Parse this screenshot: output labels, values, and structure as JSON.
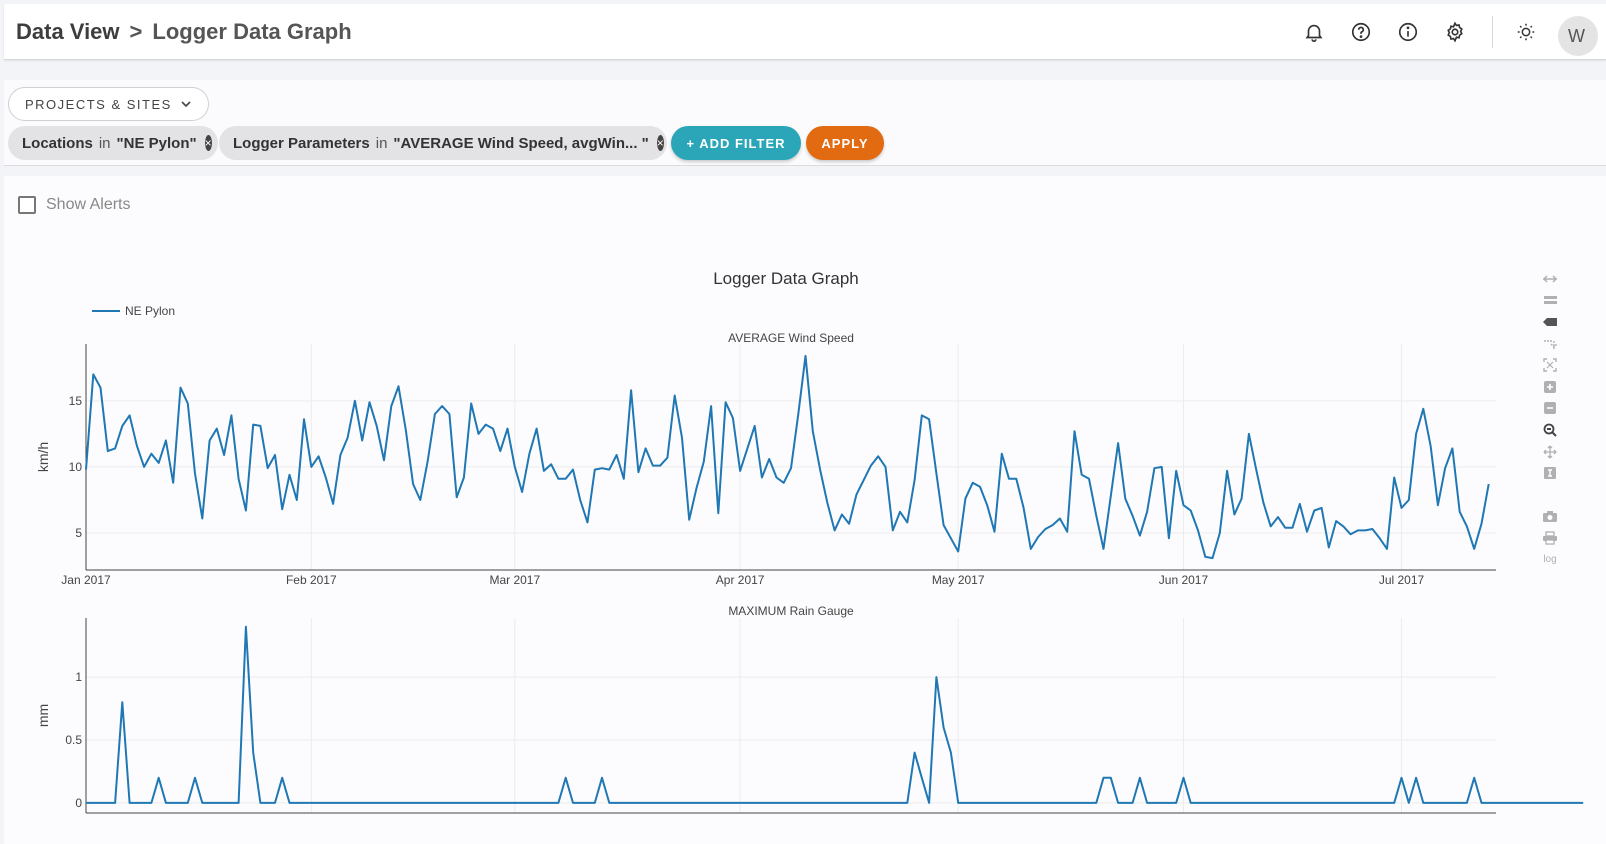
{
  "header": {
    "breadcrumb_root": "Data View",
    "breadcrumb_sep": ">",
    "breadcrumb_current": "Logger Data Graph",
    "icons": [
      "bell-icon",
      "help-icon",
      "info-icon",
      "gear-icon",
      "brightness-icon"
    ],
    "avatar_initial": "W"
  },
  "filters": {
    "projects_button": "PROJECTS & SITES",
    "chips": [
      {
        "field": "Locations",
        "op": "in",
        "value": "\"NE Pylon\""
      },
      {
        "field": "Logger Parameters",
        "op": "in",
        "value": "\"AVERAGE Wind Speed, avgWin... \""
      }
    ],
    "add_filter_label": "+ ADD FILTER",
    "apply_label": "APPLY"
  },
  "alerts": {
    "label": "Show Alerts"
  },
  "modebar": {
    "log_label": "log"
  },
  "chart_data": {
    "type": "line",
    "title": "Logger Data Graph",
    "legend": {
      "placement": "top-left",
      "entries": [
        "NE Pylon"
      ]
    },
    "x_tick_labels": [
      "Jan 2017",
      "Feb 2017",
      "Mar 2017",
      "Apr 2017",
      "May 2017",
      "Jun 2017",
      "Jul 2017"
    ],
    "x_tick_dates": [
      "2017-01-01",
      "2017-02-01",
      "2017-03-01",
      "2017-04-01",
      "2017-05-01",
      "2017-06-01",
      "2017-07-01"
    ],
    "xlim": [
      "2017-01-01",
      "2017-07-14"
    ],
    "grid": true,
    "subplots": [
      {
        "title": "AVERAGE Wind Speed",
        "ylabel": "km/h",
        "ylim": [
          2.2,
          19.3
        ],
        "yticks": [
          5,
          10,
          15
        ],
        "ytick_labels": [
          "5",
          "10",
          "15"
        ],
        "series": [
          {
            "name": "NE Pylon",
            "x_start": "2017-01-01",
            "x_step_days": 1,
            "values": [
              9.8,
              17.0,
              16.0,
              11.2,
              11.4,
              13.1,
              13.9,
              11.6,
              10.0,
              11.0,
              10.3,
              12.0,
              8.8,
              16.0,
              14.8,
              9.5,
              6.1,
              12.0,
              12.9,
              10.9,
              13.9,
              9.1,
              6.7,
              13.2,
              13.1,
              9.9,
              10.9,
              6.8,
              9.4,
              7.5,
              13.6,
              10.0,
              10.8,
              9.2,
              7.2,
              10.9,
              12.2,
              15.0,
              12.0,
              14.9,
              13.1,
              10.5,
              14.6,
              16.1,
              12.8,
              8.7,
              7.5,
              10.4,
              14.0,
              14.6,
              14.0,
              7.7,
              9.2,
              14.8,
              12.5,
              13.2,
              12.9,
              11.2,
              12.9,
              10.0,
              8.1,
              11.0,
              12.9,
              9.7,
              10.2,
              9.1,
              9.1,
              9.8,
              7.5,
              5.8,
              9.8,
              9.9,
              9.8,
              10.9,
              9.1,
              15.8,
              9.6,
              11.4,
              10.1,
              10.1,
              10.7,
              15.4,
              12.2,
              6.0,
              8.4,
              10.4,
              14.6,
              6.5,
              14.9,
              13.7,
              9.7,
              11.4,
              13.1,
              9.2,
              10.6,
              9.2,
              8.8,
              9.9,
              14.0,
              18.4,
              12.7,
              9.8,
              7.3,
              5.2,
              6.4,
              5.7,
              7.9,
              9.0,
              10.1,
              10.8,
              10.0,
              5.2,
              6.6,
              5.8,
              9.0,
              13.9,
              13.6,
              9.5,
              5.6,
              4.6,
              3.6,
              7.6,
              8.8,
              8.5,
              7.1,
              5.1,
              11.0,
              9.1,
              9.1,
              6.9,
              3.8,
              4.7,
              5.3,
              5.6,
              6.1,
              5.1,
              12.7,
              9.4,
              9.1,
              6.3,
              3.8,
              7.8,
              11.8,
              7.6,
              6.3,
              4.8,
              6.6,
              9.9,
              10.0,
              4.6,
              9.7,
              7.1,
              6.7,
              5.2,
              3.2,
              3.1,
              5.0,
              9.7,
              6.4,
              7.6,
              12.5,
              9.8,
              7.3,
              5.5,
              6.2,
              5.4,
              5.4,
              7.2,
              5.1,
              6.7,
              6.9,
              3.9,
              5.9,
              5.5,
              4.9,
              5.2,
              5.2,
              5.3,
              4.6,
              3.8,
              9.2,
              6.9,
              7.5,
              12.5,
              14.4,
              11.6,
              7.1,
              9.9,
              11.4,
              6.6,
              5.5,
              3.8,
              5.7,
              8.7
            ]
          }
        ]
      },
      {
        "title": "MAXIMUM Rain Gauge",
        "ylabel": "mm",
        "ylim": [
          -0.08,
          1.47
        ],
        "yticks": [
          0,
          0.5,
          1
        ],
        "ytick_labels": [
          "0",
          "0.5",
          "1"
        ],
        "series": [
          {
            "name": "NE Pylon",
            "x_start": "2017-01-01",
            "x_step_days": 1,
            "values": [
              0,
              0,
              0,
              0,
              0,
              0.8,
              0,
              0,
              0,
              0,
              0.2,
              0,
              0,
              0,
              0,
              0.2,
              0,
              0,
              0,
              0,
              0,
              0,
              1.4,
              0.4,
              0,
              0,
              0,
              0.2,
              0,
              0,
              0,
              0,
              0,
              0,
              0,
              0,
              0,
              0,
              0,
              0,
              0,
              0,
              0,
              0,
              0,
              0,
              0,
              0,
              0,
              0,
              0,
              0,
              0,
              0,
              0,
              0,
              0,
              0,
              0,
              0,
              0,
              0,
              0,
              0,
              0,
              0,
              0.2,
              0,
              0,
              0,
              0,
              0.2,
              0,
              0,
              0,
              0,
              0,
              0,
              0,
              0,
              0,
              0,
              0,
              0,
              0,
              0,
              0,
              0,
              0,
              0,
              0,
              0,
              0,
              0,
              0,
              0,
              0,
              0,
              0,
              0,
              0,
              0,
              0,
              0,
              0,
              0,
              0,
              0,
              0,
              0,
              0,
              0,
              0,
              0,
              0.4,
              0.2,
              0,
              1.0,
              0.6,
              0.4,
              0,
              0,
              0,
              0,
              0,
              0,
              0,
              0,
              0,
              0,
              0,
              0,
              0,
              0,
              0,
              0,
              0,
              0,
              0,
              0,
              0.2,
              0.2,
              0,
              0,
              0,
              0.2,
              0,
              0,
              0,
              0,
              0,
              0.2,
              0,
              0,
              0,
              0,
              0,
              0,
              0,
              0,
              0,
              0,
              0,
              0,
              0,
              0,
              0,
              0,
              0,
              0,
              0,
              0,
              0,
              0,
              0,
              0,
              0,
              0,
              0,
              0,
              0,
              0.2,
              0,
              0.2,
              0,
              0,
              0,
              0,
              0,
              0,
              0,
              0.2,
              0,
              0,
              0,
              0,
              0,
              0,
              0,
              0,
              0,
              0,
              0,
              0,
              0,
              0,
              0
            ]
          }
        ]
      }
    ],
    "line_color": "#1f77b4"
  }
}
